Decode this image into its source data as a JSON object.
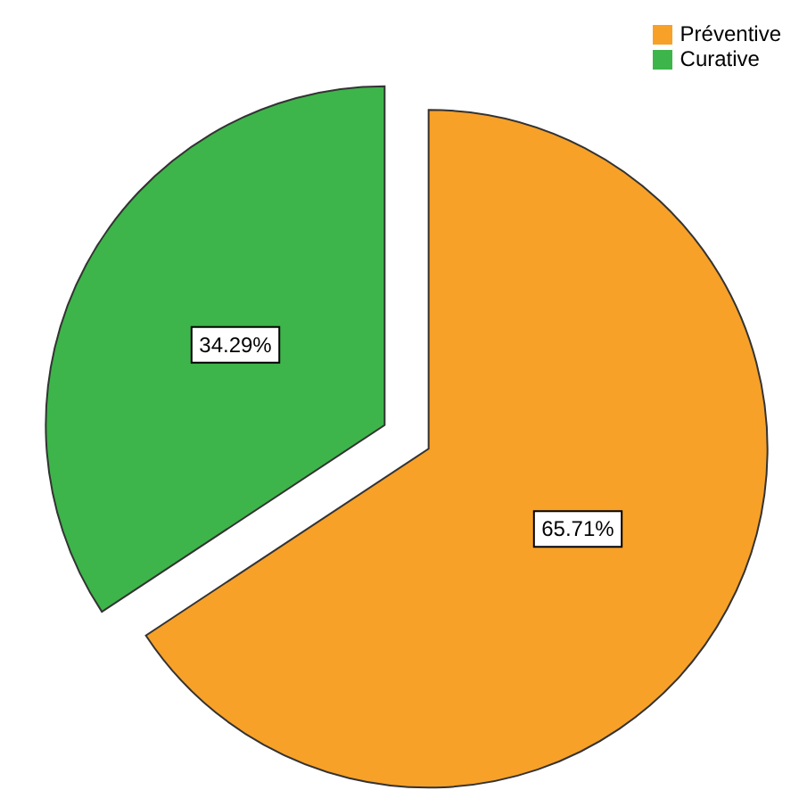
{
  "chart_data": {
    "type": "pie",
    "categories": [
      "Préventive",
      "Curative"
    ],
    "values": [
      65.71,
      34.29
    ],
    "colors": [
      "#f7a128",
      "#3db54a"
    ],
    "value_labels": [
      "65.71%",
      "34.29%"
    ],
    "legend": "top right"
  }
}
